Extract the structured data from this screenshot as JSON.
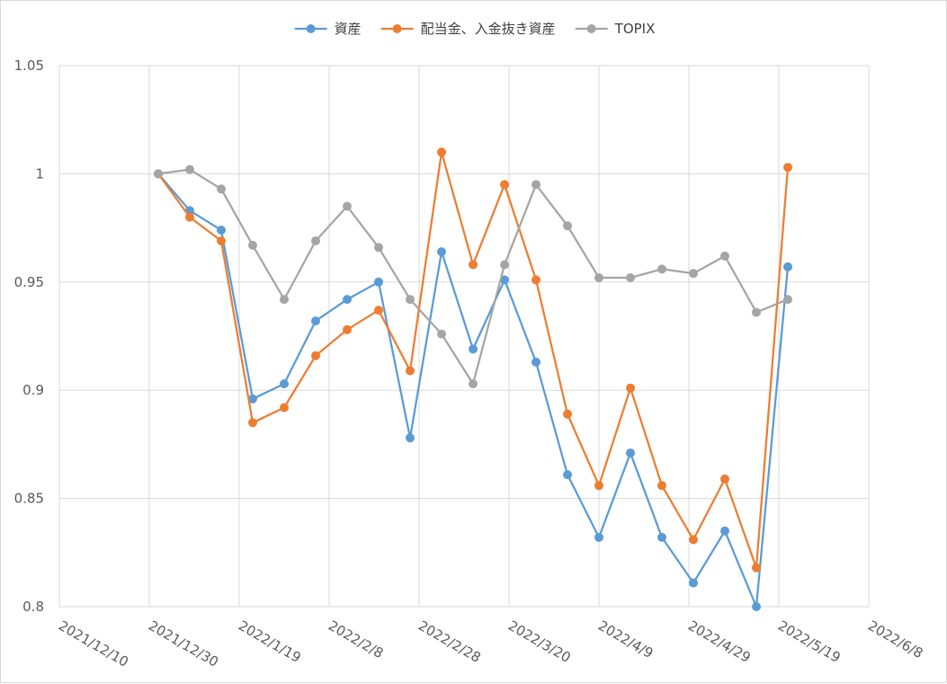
{
  "chart_data": {
    "type": "line",
    "title": "",
    "xlabel": "",
    "ylabel": "",
    "x_ticks": [
      "2021/12/10",
      "2021/12/30",
      "2022/1/19",
      "2022/2/8",
      "2022/2/28",
      "2022/3/20",
      "2022/4/9",
      "2022/4/29",
      "2022/5/19",
      "2022/6/8"
    ],
    "xlim": [
      "2021/12/10",
      "2022/6/8"
    ],
    "y_ticks": [
      "0.8",
      "0.85",
      "0.9",
      "0.95",
      "1",
      "1.05"
    ],
    "ylim": [
      0.8,
      1.05
    ],
    "grid": true,
    "legend_position": "top",
    "x": [
      "2022/1/1",
      "2022/1/8",
      "2022/1/15",
      "2022/1/22",
      "2022/1/29",
      "2022/2/5",
      "2022/2/12",
      "2022/2/19",
      "2022/2/26",
      "2022/3/5",
      "2022/3/12",
      "2022/3/19",
      "2022/3/26",
      "2022/4/2",
      "2022/4/9",
      "2022/4/16",
      "2022/4/23",
      "2022/4/30",
      "2022/5/7",
      "2022/5/14",
      "2022/5/21"
    ],
    "series": [
      {
        "name": "資産",
        "color": "#5b9bd5",
        "values": [
          1.0,
          0.983,
          0.974,
          0.896,
          0.903,
          0.932,
          0.942,
          0.95,
          0.878,
          0.964,
          0.919,
          0.951,
          0.913,
          0.861,
          0.832,
          0.871,
          0.832,
          0.811,
          0.835,
          0.8,
          0.957
        ]
      },
      {
        "name": "配当金、入金抜き資産",
        "color": "#ed7d31",
        "values": [
          1.0,
          0.98,
          0.969,
          0.885,
          0.892,
          0.916,
          0.928,
          0.937,
          0.909,
          1.01,
          0.958,
          0.995,
          0.951,
          0.889,
          0.856,
          0.901,
          0.856,
          0.831,
          0.859,
          0.818,
          1.003
        ]
      },
      {
        "name": "TOPIX",
        "color": "#a5a5a5",
        "values": [
          1.0,
          1.002,
          0.993,
          0.967,
          0.942,
          0.969,
          0.985,
          0.966,
          0.942,
          0.926,
          0.903,
          0.958,
          0.995,
          0.976,
          0.952,
          0.952,
          0.956,
          0.954,
          0.962,
          0.936,
          0.942
        ]
      }
    ]
  }
}
